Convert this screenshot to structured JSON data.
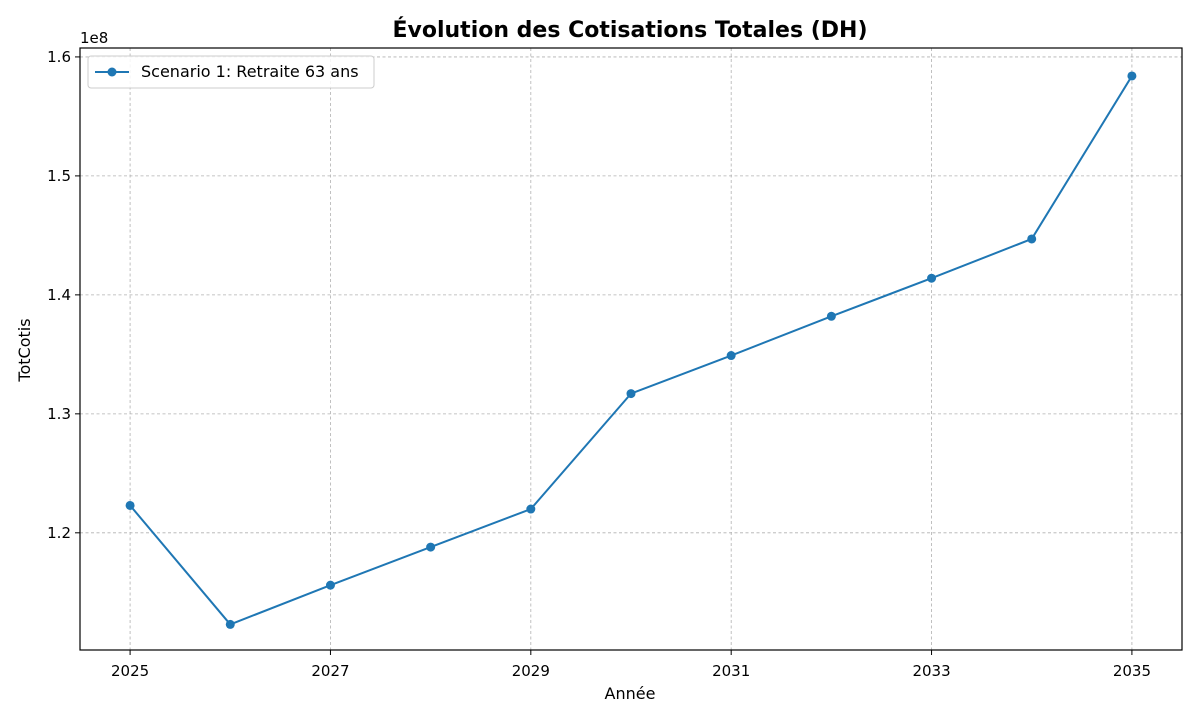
{
  "chart_data": {
    "type": "line",
    "title": "Évolution des Cotisations Totales (DH)",
    "xlabel": "Année",
    "ylabel": "TotCotis",
    "y_offset_label": "1e8",
    "x": [
      2025,
      2026,
      2027,
      2028,
      2029,
      2030,
      2031,
      2032,
      2033,
      2034,
      2035
    ],
    "xlim": [
      2024.5,
      2035.5
    ],
    "ylim": [
      1.1015,
      1.6075
    ],
    "x_ticks": [
      2025,
      2027,
      2029,
      2031,
      2033,
      2035
    ],
    "x_tick_labels": [
      "2025",
      "2027",
      "2029",
      "2031",
      "2033",
      "2035"
    ],
    "y_ticks": [
      1.2,
      1.3,
      1.4,
      1.5,
      1.6
    ],
    "y_tick_labels": [
      "1.2",
      "1.3",
      "1.4",
      "1.5",
      "1.6"
    ],
    "grid": true,
    "legend_position": "top-left",
    "series": [
      {
        "name": "Scenario 1: Retraite 63 ans",
        "color": "#1f77b4",
        "marker": "circle",
        "values": [
          1.223,
          1.123,
          1.156,
          1.188,
          1.22,
          1.317,
          1.349,
          1.382,
          1.414,
          1.447,
          1.584
        ]
      }
    ]
  }
}
